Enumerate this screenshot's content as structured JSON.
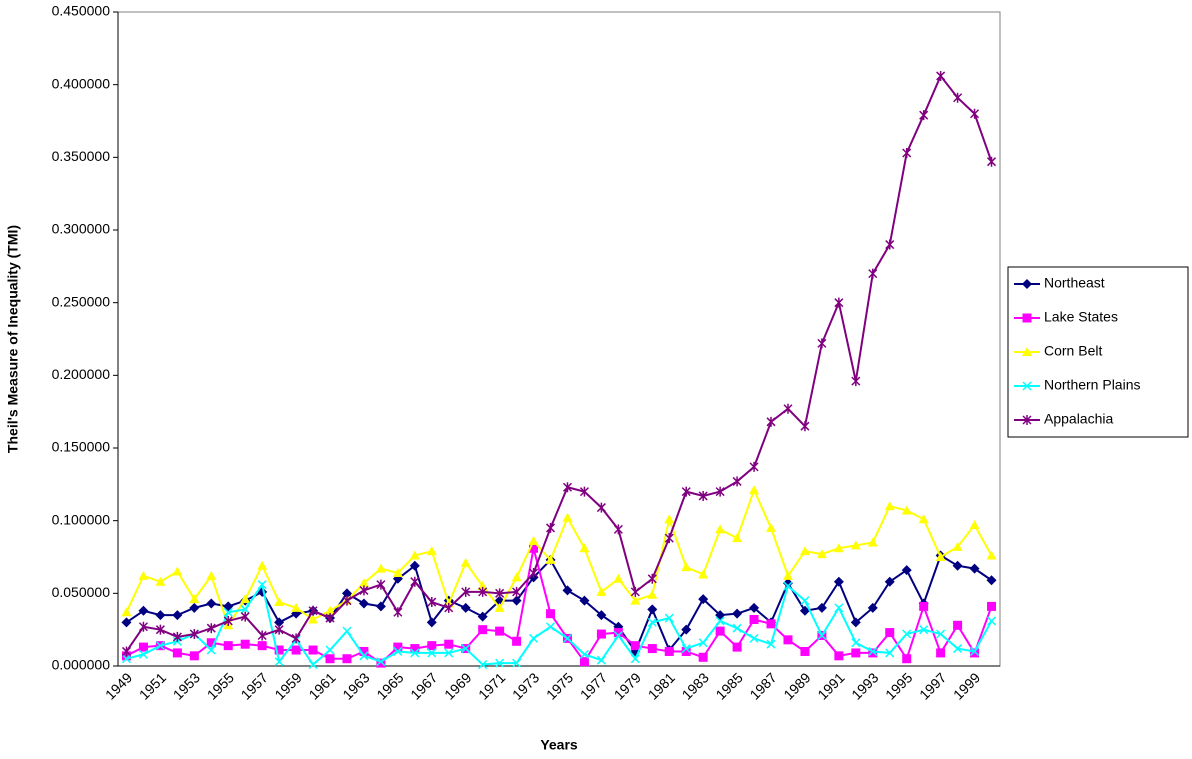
{
  "chart_data": {
    "type": "line",
    "y_label": "Theil's Measure of Inequality (TMI)",
    "x_label": "Years",
    "categories": [
      "1949",
      null,
      "1951",
      null,
      "1953",
      null,
      "1955",
      null,
      "1957",
      null,
      "1959",
      null,
      "1961",
      null,
      "1963",
      null,
      "1965",
      null,
      "1967",
      null,
      "1969",
      null,
      "1971",
      null,
      "1973",
      null,
      "1975",
      null,
      "1977",
      null,
      "1979",
      null,
      "1981",
      null,
      "1983",
      null,
      "1985",
      null,
      "1987",
      null,
      "1989",
      null,
      "1991",
      null,
      "1993",
      null,
      "1995",
      null,
      "1997",
      null,
      "1999",
      null
    ],
    "ylim": [
      0,
      0.45
    ],
    "yticks": [
      {
        "value": 0,
        "label": "0.000000"
      },
      {
        "value": 0.05,
        "label": "0.050000"
      },
      {
        "value": 0.1,
        "label": "0.100000"
      },
      {
        "value": 0.15,
        "label": "0.150000"
      },
      {
        "value": 0.2,
        "label": "0.200000"
      },
      {
        "value": 0.25,
        "label": "0.250000"
      },
      {
        "value": 0.3,
        "label": "0.300000"
      },
      {
        "value": 0.35,
        "label": "0.350000"
      },
      {
        "value": 0.4,
        "label": "0.400000"
      },
      {
        "value": 0.45,
        "label": "0.450000"
      }
    ],
    "legend": "right",
    "series": [
      {
        "name": "Northeast",
        "color": "#000080",
        "marker": "diamond",
        "values": [
          0.03,
          0.038,
          0.035,
          0.035,
          0.04,
          0.043,
          0.041,
          0.045,
          0.051,
          0.03,
          0.036,
          0.038,
          0.033,
          0.05,
          0.043,
          0.041,
          0.06,
          0.069,
          0.03,
          0.045,
          0.04,
          0.034,
          0.045,
          0.045,
          0.061,
          0.073,
          0.052,
          0.045,
          0.035,
          0.027,
          0.01,
          0.039,
          0.011,
          0.025,
          0.046,
          0.035,
          0.036,
          0.04,
          0.03,
          0.057,
          0.038,
          0.04,
          0.058,
          0.03,
          0.04,
          0.058,
          0.066,
          0.043,
          0.076,
          0.069,
          0.067,
          0.059
        ]
      },
      {
        "name": "Lake States",
        "color": "#ff00ff",
        "marker": "square",
        "values": [
          0.007,
          0.013,
          0.014,
          0.009,
          0.007,
          0.016,
          0.014,
          0.015,
          0.014,
          0.011,
          0.011,
          0.011,
          0.005,
          0.005,
          0.01,
          0.002,
          0.013,
          0.012,
          0.014,
          0.015,
          0.012,
          0.025,
          0.024,
          0.017,
          0.081,
          0.036,
          0.019,
          0.003,
          0.022,
          0.023,
          0.014,
          0.012,
          0.01,
          0.01,
          0.006,
          0.024,
          0.013,
          0.032,
          0.029,
          0.018,
          0.01,
          0.021,
          0.007,
          0.009,
          0.009,
          0.023,
          0.005,
          0.041,
          0.009,
          0.028,
          0.009,
          0.041
        ]
      },
      {
        "name": "Corn Belt",
        "color": "#ffff00",
        "marker": "triangle",
        "values": [
          0.037,
          0.062,
          0.058,
          0.065,
          0.046,
          0.062,
          0.028,
          0.046,
          0.069,
          0.044,
          0.04,
          0.032,
          0.038,
          0.045,
          0.057,
          0.067,
          0.064,
          0.076,
          0.079,
          0.043,
          0.071,
          0.055,
          0.04,
          0.061,
          0.086,
          0.073,
          0.102,
          0.081,
          0.051,
          0.06,
          0.045,
          0.049,
          0.101,
          0.068,
          0.063,
          0.094,
          0.088,
          0.121,
          0.095,
          0.062,
          0.079,
          0.077,
          0.081,
          0.083,
          0.085,
          0.11,
          0.107,
          0.101,
          0.075,
          0.082,
          0.097,
          0.076
        ]
      },
      {
        "name": "Northern Plains",
        "color": "#00ffff",
        "marker": "x",
        "values": [
          0.005,
          0.008,
          0.014,
          0.017,
          0.022,
          0.011,
          0.037,
          0.039,
          0.056,
          0.003,
          0.018,
          0.001,
          0.011,
          0.024,
          0.007,
          0.003,
          0.01,
          0.009,
          0.009,
          0.009,
          0.012,
          0.001,
          0.002,
          0.002,
          0.019,
          0.027,
          0.019,
          0.008,
          0.004,
          0.021,
          0.005,
          0.03,
          0.033,
          0.012,
          0.016,
          0.031,
          0.026,
          0.019,
          0.015,
          0.055,
          0.045,
          0.021,
          0.04,
          0.016,
          0.01,
          0.009,
          0.022,
          0.025,
          0.022,
          0.012,
          0.01,
          0.031
        ]
      },
      {
        "name": "Appalachia",
        "color": "#800080",
        "marker": "asterisk",
        "values": [
          0.01,
          0.027,
          0.025,
          0.02,
          0.022,
          0.026,
          0.031,
          0.034,
          0.021,
          0.025,
          0.019,
          0.038,
          0.033,
          0.045,
          0.052,
          0.056,
          0.037,
          0.058,
          0.044,
          0.04,
          0.051,
          0.051,
          0.05,
          0.051,
          0.064,
          0.095,
          0.123,
          0.12,
          0.109,
          0.094,
          0.051,
          0.06,
          0.088,
          0.12,
          0.117,
          0.12,
          0.127,
          0.137,
          0.168,
          0.177,
          0.165,
          0.222,
          0.25,
          0.196,
          0.27,
          0.29,
          0.353,
          0.379,
          0.406,
          0.391,
          0.38,
          0.347
        ]
      }
    ]
  }
}
